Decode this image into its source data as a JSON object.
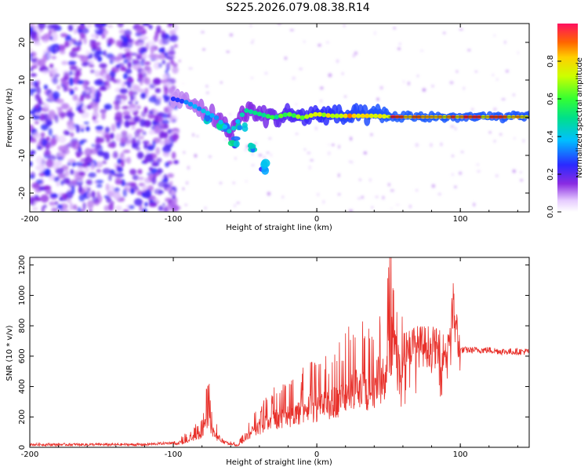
{
  "title": "S225.2026.079.08.38.R14",
  "colors": {
    "snr_line": "#e8302a",
    "ridge": "#e23a2a",
    "axis": "#000000"
  },
  "chart_data": [
    {
      "type": "heatmap",
      "name": "spectrogram",
      "xlabel": "Height of straight line (km)",
      "ylabel": "Frequency (Hz)",
      "xlim": [
        -200,
        148
      ],
      "ylim": [
        -25,
        25
      ],
      "xticks": [
        -200,
        -100,
        0,
        100
      ],
      "yticks": [
        -20,
        -10,
        0,
        10,
        20
      ],
      "colorbar": {
        "label": "Normalized spectral amplitude",
        "range": [
          0,
          1
        ],
        "ticks": [
          "0.0",
          "0.2",
          "0.4",
          "0.6",
          "0.8"
        ],
        "tick_values": [
          0.0,
          0.2,
          0.4,
          0.6,
          0.8
        ]
      },
      "noise_region": {
        "x": [
          -200,
          -100
        ],
        "y": [
          -25,
          25
        ],
        "amplitude": [
          0.05,
          0.25
        ]
      },
      "ridge": {
        "x": [
          -100,
          -90,
          -80,
          -70,
          -60,
          -50,
          -40,
          -30,
          -20,
          -10,
          0,
          10,
          20,
          30,
          40,
          50,
          60,
          80,
          100,
          120,
          148
        ],
        "y": [
          5,
          4,
          2,
          0,
          -4,
          2,
          1,
          0,
          1,
          0,
          1,
          0.5,
          0.5,
          0.5,
          0.5,
          0.3,
          0.2,
          0.2,
          0.2,
          0.2,
          0.2
        ],
        "amplitude": [
          0.3,
          0.35,
          0.4,
          0.45,
          0.5,
          0.5,
          0.55,
          0.6,
          0.7,
          0.75,
          0.8,
          0.85,
          0.9,
          0.92,
          0.95,
          0.97,
          0.98,
          0.98,
          0.97,
          0.97,
          0.96
        ]
      },
      "side_branch": {
        "x": [
          -75,
          -65,
          -58,
          -52,
          -45,
          -38
        ],
        "y": [
          0,
          -3,
          -6,
          -2,
          -8,
          -13
        ]
      }
    },
    {
      "type": "line",
      "name": "snr",
      "xlabel": "Height of straight line (km)",
      "ylabel": "SNR (10 * v/v)",
      "xlim": [
        -200,
        148
      ],
      "ylim": [
        0,
        1250
      ],
      "xticks": [
        -200,
        -100,
        0,
        100
      ],
      "yticks": [
        0,
        200,
        400,
        600,
        800,
        1000,
        1200
      ],
      "envelope": {
        "x": [
          -200,
          -120,
          -100,
          -90,
          -80,
          -76,
          -72,
          -65,
          -55,
          -45,
          -35,
          -25,
          -15,
          -5,
          0,
          10,
          20,
          30,
          40,
          48,
          52,
          56,
          60,
          70,
          80,
          90,
          95,
          100,
          110,
          120,
          130,
          148
        ],
        "y": [
          18,
          18,
          30,
          80,
          150,
          380,
          160,
          60,
          20,
          180,
          280,
          350,
          380,
          480,
          450,
          500,
          600,
          650,
          700,
          900,
          1150,
          900,
          700,
          700,
          700,
          650,
          950,
          640,
          640,
          640,
          630,
          630
        ]
      }
    }
  ]
}
